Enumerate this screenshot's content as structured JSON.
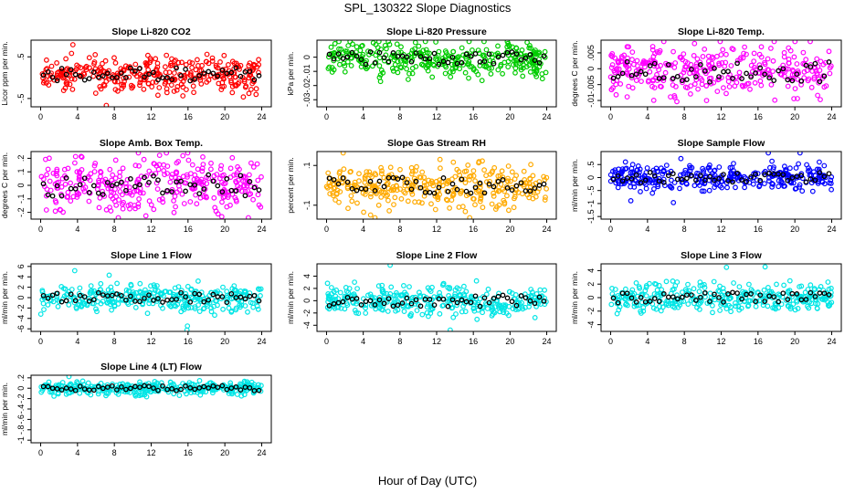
{
  "figure": {
    "title": "SPL_130322  Slope Diagnostics",
    "xlabel": "Hour of Day (UTC)"
  },
  "chart_data": [
    {
      "type": "scatter",
      "title": "Slope Li-820 CO2",
      "ylabel": "Licor ppm per min.",
      "color": "#ff0000",
      "xlim": [
        0,
        24
      ],
      "ylim": [
        -0.7,
        0.9
      ],
      "yticks": [
        -0.5,
        0.5
      ],
      "xticks": [
        0,
        4,
        8,
        12,
        16,
        20,
        24
      ],
      "center": 0.08,
      "spread": 0.2,
      "series_summary": "many points between about -0.4 and 0.5, outliers near -0.8 and 0.8"
    },
    {
      "type": "scatter",
      "title": "Slope Li-820 Pressure",
      "ylabel": "kPa per min.",
      "color": "#00cc00",
      "xlim": [
        0,
        24
      ],
      "ylim": [
        -0.035,
        0.012
      ],
      "yticks": [
        -0.03,
        -0.02,
        -0.01,
        0.0
      ],
      "xticks": [
        0,
        4,
        8,
        12,
        16,
        20,
        24
      ],
      "center": -0.001,
      "spread": 0.006,
      "series_summary": "most points between -0.01 and 0.01, outliers near -0.035"
    },
    {
      "type": "scatter",
      "title": "Slope Li-820 Temp.",
      "ylabel": "degrees C per min.",
      "color": "#ff00ff",
      "xlim": [
        0,
        24
      ],
      "ylim": [
        -0.012,
        0.009
      ],
      "yticks": [
        -0.01,
        -0.005,
        0.0,
        0.005
      ],
      "xticks": [
        0,
        4,
        8,
        12,
        16,
        20,
        24
      ],
      "center": -0.001,
      "spread": 0.004,
      "series_summary": "points between about -0.01 and 0.008"
    },
    {
      "type": "scatter",
      "title": "Slope Amb. Box Temp.",
      "ylabel": "degrees C per min.",
      "color": "#ff00ff",
      "xlim": [
        0,
        24
      ],
      "ylim": [
        -0.25,
        0.25
      ],
      "yticks": [
        -0.2,
        -0.1,
        0.0,
        0.1,
        0.2
      ],
      "xticks": [
        0,
        4,
        8,
        12,
        16,
        20,
        24
      ],
      "center": 0.0,
      "spread": 0.1,
      "series_summary": "points spread between -0.2 and 0.2"
    },
    {
      "type": "scatter",
      "title": "Slope Gas Stream RH",
      "ylabel": "percent per min.",
      "color": "#ffaa00",
      "xlim": [
        0,
        24
      ],
      "ylim": [
        -0.17,
        0.17
      ],
      "yticks": [
        -0.1,
        0.1
      ],
      "xticks": [
        0,
        4,
        8,
        12,
        16,
        20,
        24
      ],
      "center": 0.0,
      "spread": 0.05,
      "series_summary": "dense band between -0.1 and 0.1"
    },
    {
      "type": "scatter",
      "title": "Slope Sample Flow",
      "ylabel": "ml/min per min.",
      "color": "#0000ff",
      "xlim": [
        0,
        24
      ],
      "ylim": [
        -1.6,
        1.0
      ],
      "yticks": [
        -1.5,
        -1.0,
        -0.5,
        0.0,
        0.5
      ],
      "xticks": [
        0,
        4,
        8,
        12,
        16,
        20,
        24
      ],
      "center": 0.0,
      "spread": 0.25,
      "series_summary": "points mostly between -0.5 and 0.5, outliers to -1.5 and 0.9"
    },
    {
      "type": "scatter",
      "title": "Slope Line 1 Flow",
      "ylabel": "ml/min per min.",
      "color": "#00e5e5",
      "xlim": [
        0,
        24
      ],
      "ylim": [
        -6.5,
        6.5
      ],
      "yticks": [
        -6,
        -4,
        -2,
        0,
        2,
        4,
        6
      ],
      "xticks": [
        0,
        4,
        8,
        12,
        16,
        20,
        24
      ],
      "center": 0.0,
      "spread": 1.2,
      "series_summary": "points mostly between -2 and 2, outliers near 6 and -6"
    },
    {
      "type": "scatter",
      "title": "Slope Line 2 Flow",
      "ylabel": "ml/min per min.",
      "color": "#00e5e5",
      "xlim": [
        0,
        24
      ],
      "ylim": [
        -5,
        6
      ],
      "yticks": [
        -4,
        -2,
        0,
        2,
        4
      ],
      "xticks": [
        0,
        4,
        8,
        12,
        16,
        20,
        24
      ],
      "center": 0.0,
      "spread": 1.2,
      "series_summary": "points mostly between -3 and 3"
    },
    {
      "type": "scatter",
      "title": "Slope Line 3 Flow",
      "ylabel": "ml/min per min.",
      "color": "#00e5e5",
      "xlim": [
        0,
        24
      ],
      "ylim": [
        -5,
        5
      ],
      "yticks": [
        -4,
        -2,
        0,
        2,
        4
      ],
      "xticks": [
        0,
        4,
        8,
        12,
        16,
        20,
        24
      ],
      "center": 0.0,
      "spread": 1.0,
      "series_summary": "points mostly between -3 and 3"
    },
    {
      "type": "scatter",
      "title": "Slope Line 4 (LT) Flow",
      "ylabel": "ml/min per min.",
      "color": "#00e5e5",
      "xlim": [
        0,
        24
      ],
      "ylim": [
        -1.05,
        0.25
      ],
      "yticks": [
        -1.0,
        -0.8,
        -0.6,
        -0.4,
        -0.2,
        0.0,
        0.2
      ],
      "xticks": [
        0,
        4,
        8,
        12,
        16,
        20,
        24
      ],
      "center": 0.0,
      "spread": 0.06,
      "series_summary": "points mostly between -0.2 and 0.15, outliers near -0.6, -0.8 and -1.0"
    }
  ]
}
